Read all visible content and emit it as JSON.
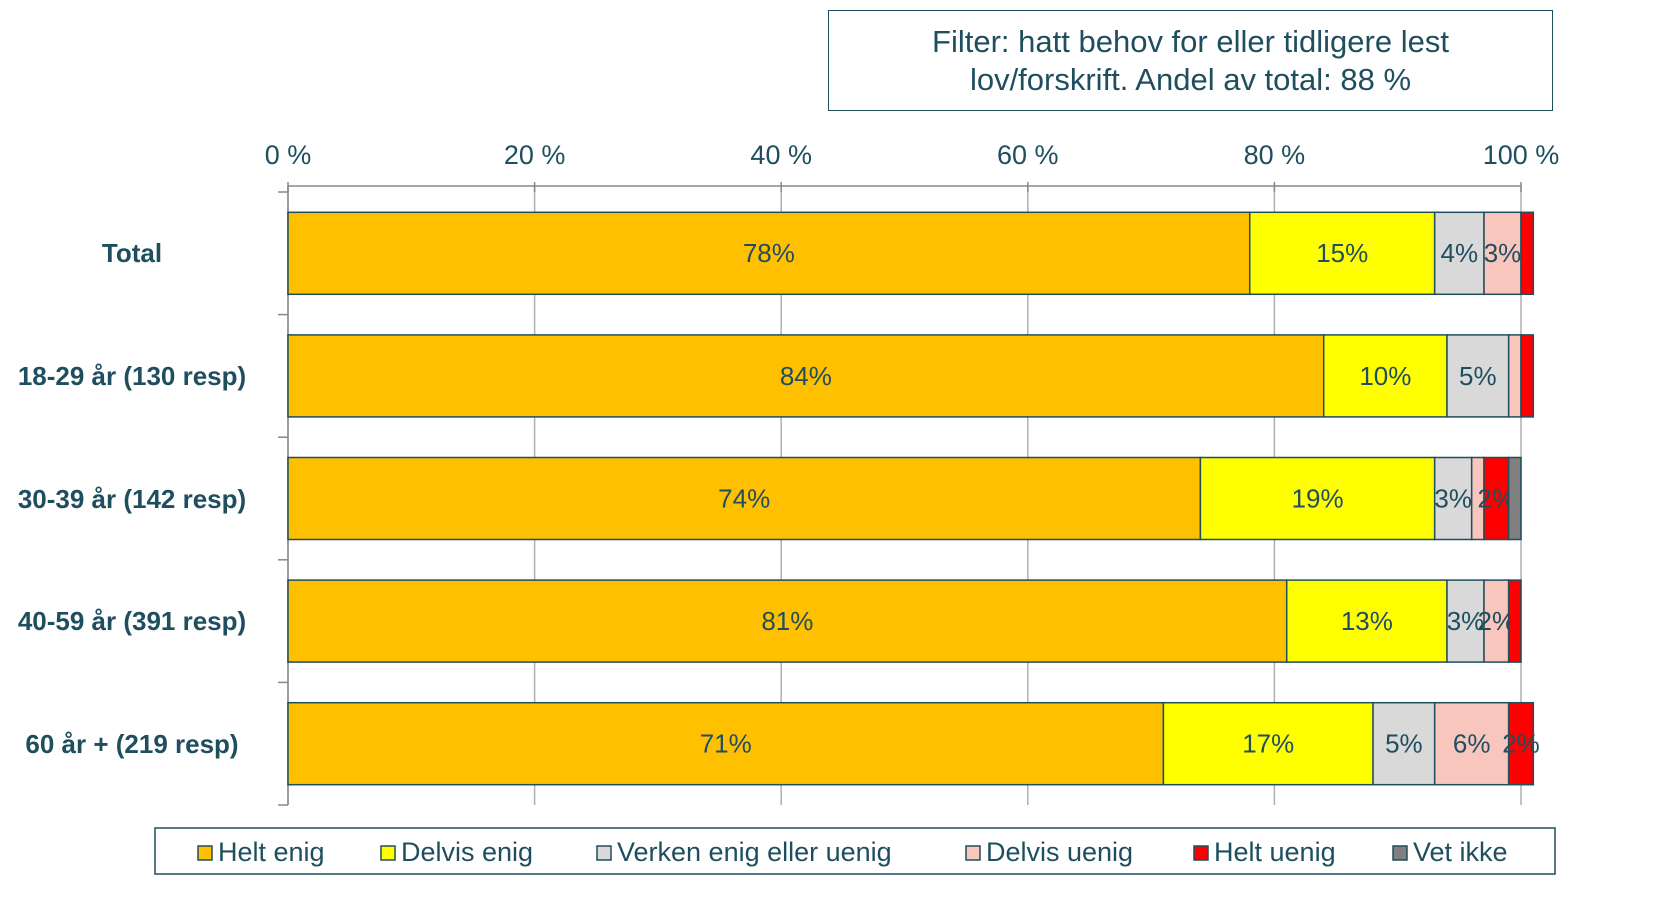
{
  "chart_data": {
    "type": "stacked_barh",
    "annotation": "Filter: hatt behov for eller tidligere lest lov/forskrift. Andel av total: 88 %",
    "categories": [
      "Total",
      "18-29 år (130 resp)",
      "30-39 år (142 resp)",
      "40-59 år (391 resp)",
      "60 år + (219 resp)"
    ],
    "series": [
      {
        "name": "Helt enig",
        "color": "#ffc000",
        "values": [
          78,
          84,
          74,
          81,
          71
        ],
        "value_labels": [
          "78%",
          "84%",
          "74%",
          "81%",
          "71%"
        ]
      },
      {
        "name": "Delvis enig",
        "color": "#ffff00",
        "values": [
          15,
          10,
          19,
          13,
          17
        ],
        "value_labels": [
          "15%",
          "10%",
          "19%",
          "13%",
          "17%"
        ]
      },
      {
        "name": "Verken enig eller uenig",
        "color": "#d9d9d9",
        "values": [
          4,
          5,
          3,
          3,
          5
        ],
        "value_labels": [
          "4%",
          "5%",
          "3%",
          "3%",
          "5%"
        ]
      },
      {
        "name": "Delvis uenig",
        "color": "#f9c6bd",
        "values": [
          3,
          1,
          1,
          2,
          6
        ],
        "value_labels": [
          "3%",
          null,
          null,
          "2%",
          "6%"
        ]
      },
      {
        "name": "Helt uenig",
        "color": "#ff0000",
        "values": [
          1,
          1,
          2,
          1,
          2
        ],
        "value_labels": [
          null,
          null,
          "2%",
          null,
          "2%"
        ]
      },
      {
        "name": "Vet ikke",
        "color": "#808080",
        "values": [
          0,
          0,
          1,
          0,
          0
        ],
        "value_labels": [
          null,
          null,
          null,
          null,
          null
        ]
      }
    ],
    "xlim": [
      0,
      100
    ],
    "xticks": [
      {
        "value": 0,
        "label": "0 %"
      },
      {
        "value": 20,
        "label": "20 %"
      },
      {
        "value": 40,
        "label": "40 %"
      },
      {
        "value": 60,
        "label": "60 %"
      },
      {
        "value": 80,
        "label": "80 %"
      },
      {
        "value": 100,
        "label": "100 %"
      }
    ],
    "grid": true,
    "legend": "bottom"
  }
}
